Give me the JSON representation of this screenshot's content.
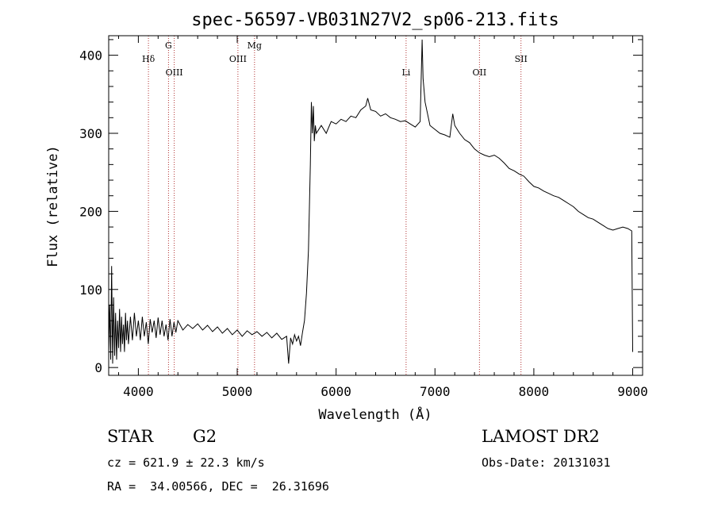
{
  "chart_data": {
    "type": "line",
    "title": "spec-56597-VB031N27V2_sp06-213.fits",
    "xlabel": "Wavelength (Å)",
    "ylabel": "Flux (relative)",
    "xlim": [
      3700,
      9100
    ],
    "ylim": [
      -10,
      425
    ],
    "xticks": [
      4000,
      5000,
      6000,
      7000,
      8000,
      9000
    ],
    "yticks": [
      0,
      100,
      200,
      300,
      400
    ],
    "grid": false,
    "series": [
      {
        "values": [
          [
            3700,
            20
          ],
          [
            3710,
            80
          ],
          [
            3720,
            10
          ],
          [
            3730,
            130
          ],
          [
            3740,
            5
          ],
          [
            3750,
            90
          ],
          [
            3760,
            15
          ],
          [
            3770,
            70
          ],
          [
            3780,
            10
          ],
          [
            3790,
            60
          ],
          [
            3800,
            25
          ],
          [
            3810,
            75
          ],
          [
            3820,
            20
          ],
          [
            3830,
            65
          ],
          [
            3840,
            30
          ],
          [
            3850,
            55
          ],
          [
            3860,
            20
          ],
          [
            3870,
            70
          ],
          [
            3880,
            35
          ],
          [
            3890,
            60
          ],
          [
            3900,
            30
          ],
          [
            3920,
            65
          ],
          [
            3940,
            35
          ],
          [
            3960,
            70
          ],
          [
            3980,
            40
          ],
          [
            4000,
            60
          ],
          [
            4020,
            35
          ],
          [
            4040,
            65
          ],
          [
            4060,
            40
          ],
          [
            4080,
            58
          ],
          [
            4100,
            30
          ],
          [
            4120,
            62
          ],
          [
            4140,
            45
          ],
          [
            4160,
            60
          ],
          [
            4180,
            38
          ],
          [
            4200,
            64
          ],
          [
            4220,
            42
          ],
          [
            4240,
            60
          ],
          [
            4260,
            40
          ],
          [
            4280,
            55
          ],
          [
            4300,
            35
          ],
          [
            4320,
            62
          ],
          [
            4340,
            40
          ],
          [
            4360,
            58
          ],
          [
            4380,
            45
          ],
          [
            4400,
            60
          ],
          [
            4450,
            48
          ],
          [
            4500,
            55
          ],
          [
            4550,
            50
          ],
          [
            4600,
            56
          ],
          [
            4650,
            48
          ],
          [
            4700,
            54
          ],
          [
            4750,
            46
          ],
          [
            4800,
            52
          ],
          [
            4850,
            44
          ],
          [
            4900,
            50
          ],
          [
            4950,
            42
          ],
          [
            5000,
            48
          ],
          [
            5050,
            40
          ],
          [
            5100,
            47
          ],
          [
            5150,
            42
          ],
          [
            5200,
            46
          ],
          [
            5250,
            40
          ],
          [
            5300,
            45
          ],
          [
            5350,
            38
          ],
          [
            5400,
            44
          ],
          [
            5450,
            36
          ],
          [
            5500,
            40
          ],
          [
            5520,
            5
          ],
          [
            5540,
            38
          ],
          [
            5560,
            30
          ],
          [
            5580,
            42
          ],
          [
            5600,
            34
          ],
          [
            5620,
            40
          ],
          [
            5640,
            28
          ],
          [
            5660,
            45
          ],
          [
            5680,
            60
          ],
          [
            5700,
            95
          ],
          [
            5720,
            150
          ],
          [
            5740,
            260
          ],
          [
            5750,
            340
          ],
          [
            5760,
            300
          ],
          [
            5770,
            335
          ],
          [
            5780,
            290
          ],
          [
            5790,
            310
          ],
          [
            5800,
            300
          ],
          [
            5850,
            310
          ],
          [
            5900,
            300
          ],
          [
            5950,
            315
          ],
          [
            6000,
            312
          ],
          [
            6050,
            318
          ],
          [
            6100,
            315
          ],
          [
            6150,
            322
          ],
          [
            6200,
            320
          ],
          [
            6250,
            330
          ],
          [
            6300,
            335
          ],
          [
            6320,
            345
          ],
          [
            6350,
            330
          ],
          [
            6400,
            328
          ],
          [
            6450,
            322
          ],
          [
            6500,
            325
          ],
          [
            6550,
            320
          ],
          [
            6600,
            318
          ],
          [
            6650,
            315
          ],
          [
            6700,
            316
          ],
          [
            6750,
            312
          ],
          [
            6800,
            308
          ],
          [
            6850,
            315
          ],
          [
            6870,
            420
          ],
          [
            6880,
            370
          ],
          [
            6900,
            340
          ],
          [
            6950,
            310
          ],
          [
            7000,
            305
          ],
          [
            7050,
            300
          ],
          [
            7100,
            298
          ],
          [
            7150,
            295
          ],
          [
            7180,
            325
          ],
          [
            7200,
            310
          ],
          [
            7250,
            300
          ],
          [
            7300,
            292
          ],
          [
            7350,
            288
          ],
          [
            7400,
            280
          ],
          [
            7450,
            275
          ],
          [
            7500,
            272
          ],
          [
            7550,
            270
          ],
          [
            7600,
            272
          ],
          [
            7650,
            268
          ],
          [
            7700,
            262
          ],
          [
            7750,
            255
          ],
          [
            7800,
            252
          ],
          [
            7850,
            248
          ],
          [
            7900,
            245
          ],
          [
            7950,
            238
          ],
          [
            8000,
            232
          ],
          [
            8050,
            230
          ],
          [
            8100,
            226
          ],
          [
            8150,
            223
          ],
          [
            8200,
            220
          ],
          [
            8250,
            218
          ],
          [
            8300,
            214
          ],
          [
            8350,
            210
          ],
          [
            8400,
            206
          ],
          [
            8450,
            200
          ],
          [
            8500,
            196
          ],
          [
            8550,
            192
          ],
          [
            8600,
            190
          ],
          [
            8650,
            186
          ],
          [
            8700,
            182
          ],
          [
            8750,
            178
          ],
          [
            8800,
            176
          ],
          [
            8850,
            178
          ],
          [
            8900,
            180
          ],
          [
            8950,
            178
          ],
          [
            8990,
            175
          ],
          [
            9000,
            20
          ]
        ]
      }
    ],
    "lines": [
      {
        "label": "Hδ",
        "x": 4102,
        "level": "low"
      },
      {
        "label": "G",
        "x": 4305,
        "level": "high"
      },
      {
        "label": "OIII",
        "x": 4363,
        "level": "mid"
      },
      {
        "label": "OIII",
        "x": 5007,
        "level": "low"
      },
      {
        "label": "Mg",
        "x": 5175,
        "level": "high"
      },
      {
        "label": "Li",
        "x": 6708,
        "level": "mid"
      },
      {
        "label": "OII",
        "x": 7450,
        "level": "mid"
      },
      {
        "label": "SII",
        "x": 7870,
        "level": "low"
      }
    ]
  },
  "info": {
    "class": "STAR",
    "subclass": "G2",
    "survey": "LAMOST DR2",
    "cz": "cz = 621.9 ± 22.3 km/s",
    "obs_date": "Obs-Date: 20131031",
    "coords": "RA =  34.00566, DEC =  26.31696"
  }
}
